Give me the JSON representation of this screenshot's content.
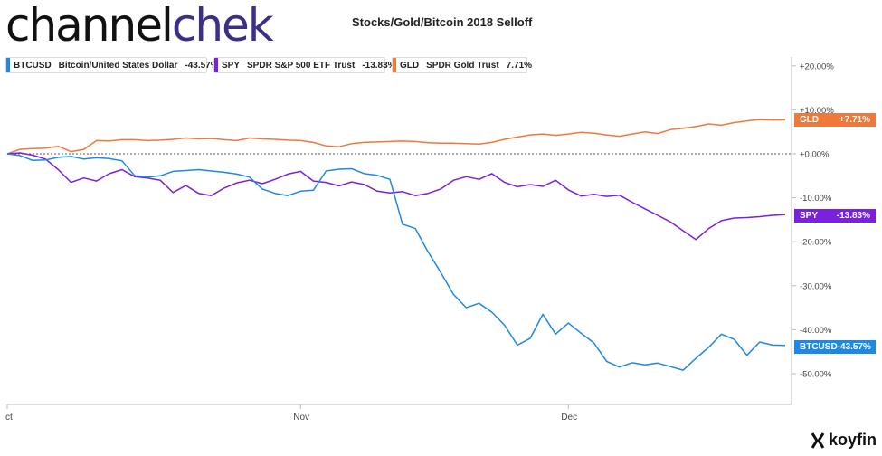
{
  "brand": {
    "part1": "channel",
    "part2": "chek"
  },
  "footer_brand": "koyfin",
  "chart_data": {
    "type": "line",
    "title": "Stocks/Gold/Bitcoin 2018 Selloff",
    "xlabel": "",
    "ylabel": "",
    "x_tick_labels": [
      "ct",
      "Nov",
      "Dec"
    ],
    "y_tick_labels": [
      "+20.00%",
      "+10.00%",
      "+0.00%",
      "-10.00%",
      "-20.00%",
      "-30.00%",
      "-40.00%",
      "-50.00%"
    ],
    "ylim": [
      -56,
      22
    ],
    "grid": false,
    "reference_line": 0,
    "legend_position": "top-left",
    "x": [
      "Oct 1",
      "Oct 2",
      "Oct 3",
      "Oct 4",
      "Oct 5",
      "Oct 8",
      "Oct 9",
      "Oct 10",
      "Oct 11",
      "Oct 12",
      "Oct 15",
      "Oct 16",
      "Oct 17",
      "Oct 18",
      "Oct 19",
      "Oct 22",
      "Oct 23",
      "Oct 24",
      "Oct 25",
      "Oct 26",
      "Oct 29",
      "Oct 30",
      "Oct 31",
      "Nov 1",
      "Nov 2",
      "Nov 5",
      "Nov 6",
      "Nov 7",
      "Nov 8",
      "Nov 9",
      "Nov 12",
      "Nov 13",
      "Nov 14",
      "Nov 15",
      "Nov 16",
      "Nov 19",
      "Nov 20",
      "Nov 21",
      "Nov 23",
      "Nov 26",
      "Nov 27",
      "Nov 28",
      "Nov 29",
      "Nov 30",
      "Dec 3",
      "Dec 4",
      "Dec 6",
      "Dec 7",
      "Dec 10",
      "Dec 11",
      "Dec 12",
      "Dec 13",
      "Dec 14",
      "Dec 17",
      "Dec 18",
      "Dec 19",
      "Dec 20",
      "Dec 21",
      "Dec 24",
      "Dec 26",
      "Dec 27",
      "Dec 28"
    ],
    "series": [
      {
        "name": "BTCUSD",
        "description": "Bitcoin/United States Dollar",
        "last": "-43.57%",
        "tag_value": "-43.57%",
        "color": "#1e88e5",
        "values": [
          0,
          -0.4,
          -1.5,
          -1.4,
          -0.8,
          -0.6,
          -1.2,
          -0.9,
          -1.1,
          -1.6,
          -5.0,
          -5.3,
          -5.0,
          -4.0,
          -3.8,
          -3.6,
          -3.9,
          -4.2,
          -4.6,
          -5.3,
          -8.0,
          -9.0,
          -9.5,
          -8.5,
          -8.3,
          -3.9,
          -3.5,
          -3.4,
          -4.5,
          -4.9,
          -5.8,
          -16.0,
          -17.0,
          -22.3,
          -27.0,
          -32.0,
          -35.0,
          -34.0,
          -36.0,
          -39.0,
          -43.5,
          -42.0,
          -36.5,
          -41.0,
          -38.5,
          -40.8,
          -43.0,
          -47.2,
          -48.5,
          -47.5,
          -48.0,
          -47.6,
          -48.4,
          -49.2,
          -46.5,
          -44.0,
          -41.0,
          -42.2,
          -45.8,
          -42.8,
          -43.5,
          -43.57
        ]
      },
      {
        "name": "SPY",
        "description": "SPDR S&P 500 ETF Trust",
        "last": "-13.83%",
        "tag_value": "-13.83%",
        "color": "#7b1fe0",
        "values": [
          0,
          0.2,
          -0.3,
          -1.2,
          -3.6,
          -6.5,
          -5.5,
          -6.2,
          -4.5,
          -3.6,
          -5.2,
          -5.5,
          -6.0,
          -8.8,
          -7.2,
          -9.0,
          -9.5,
          -7.8,
          -6.6,
          -6.0,
          -6.8,
          -5.8,
          -4.6,
          -4.0,
          -6.2,
          -6.5,
          -7.3,
          -6.4,
          -7.0,
          -8.5,
          -8.9,
          -8.6,
          -9.5,
          -9.0,
          -8.0,
          -6.0,
          -5.2,
          -5.8,
          -4.5,
          -6.5,
          -7.5,
          -7.0,
          -7.4,
          -6.0,
          -8.2,
          -9.6,
          -9.2,
          -9.7,
          -9.4,
          -11.0,
          -12.5,
          -14.0,
          -15.5,
          -17.5,
          -19.5,
          -17.0,
          -15.2,
          -14.6,
          -14.5,
          -14.3,
          -14.0,
          -13.83
        ]
      },
      {
        "name": "GLD",
        "description": "SPDR Gold Trust",
        "last": "7.71%",
        "tag_value": "+7.71%",
        "color": "#f0793a",
        "values": [
          0,
          1.0,
          1.2,
          1.3,
          1.7,
          0.5,
          1.0,
          3.0,
          2.9,
          3.2,
          3.2,
          3.0,
          3.1,
          3.3,
          3.6,
          3.4,
          3.5,
          3.2,
          3.0,
          3.6,
          3.4,
          3.3,
          3.1,
          3.0,
          2.6,
          1.8,
          1.6,
          2.3,
          2.6,
          2.7,
          2.8,
          2.9,
          2.8,
          2.5,
          2.4,
          2.4,
          2.3,
          2.2,
          2.6,
          3.3,
          3.8,
          4.3,
          4.5,
          4.2,
          4.5,
          4.9,
          4.7,
          4.3,
          4.0,
          4.5,
          5.0,
          4.6,
          5.5,
          5.8,
          6.2,
          6.8,
          6.5,
          7.1,
          7.5,
          7.8,
          7.7,
          7.71
        ]
      }
    ]
  }
}
